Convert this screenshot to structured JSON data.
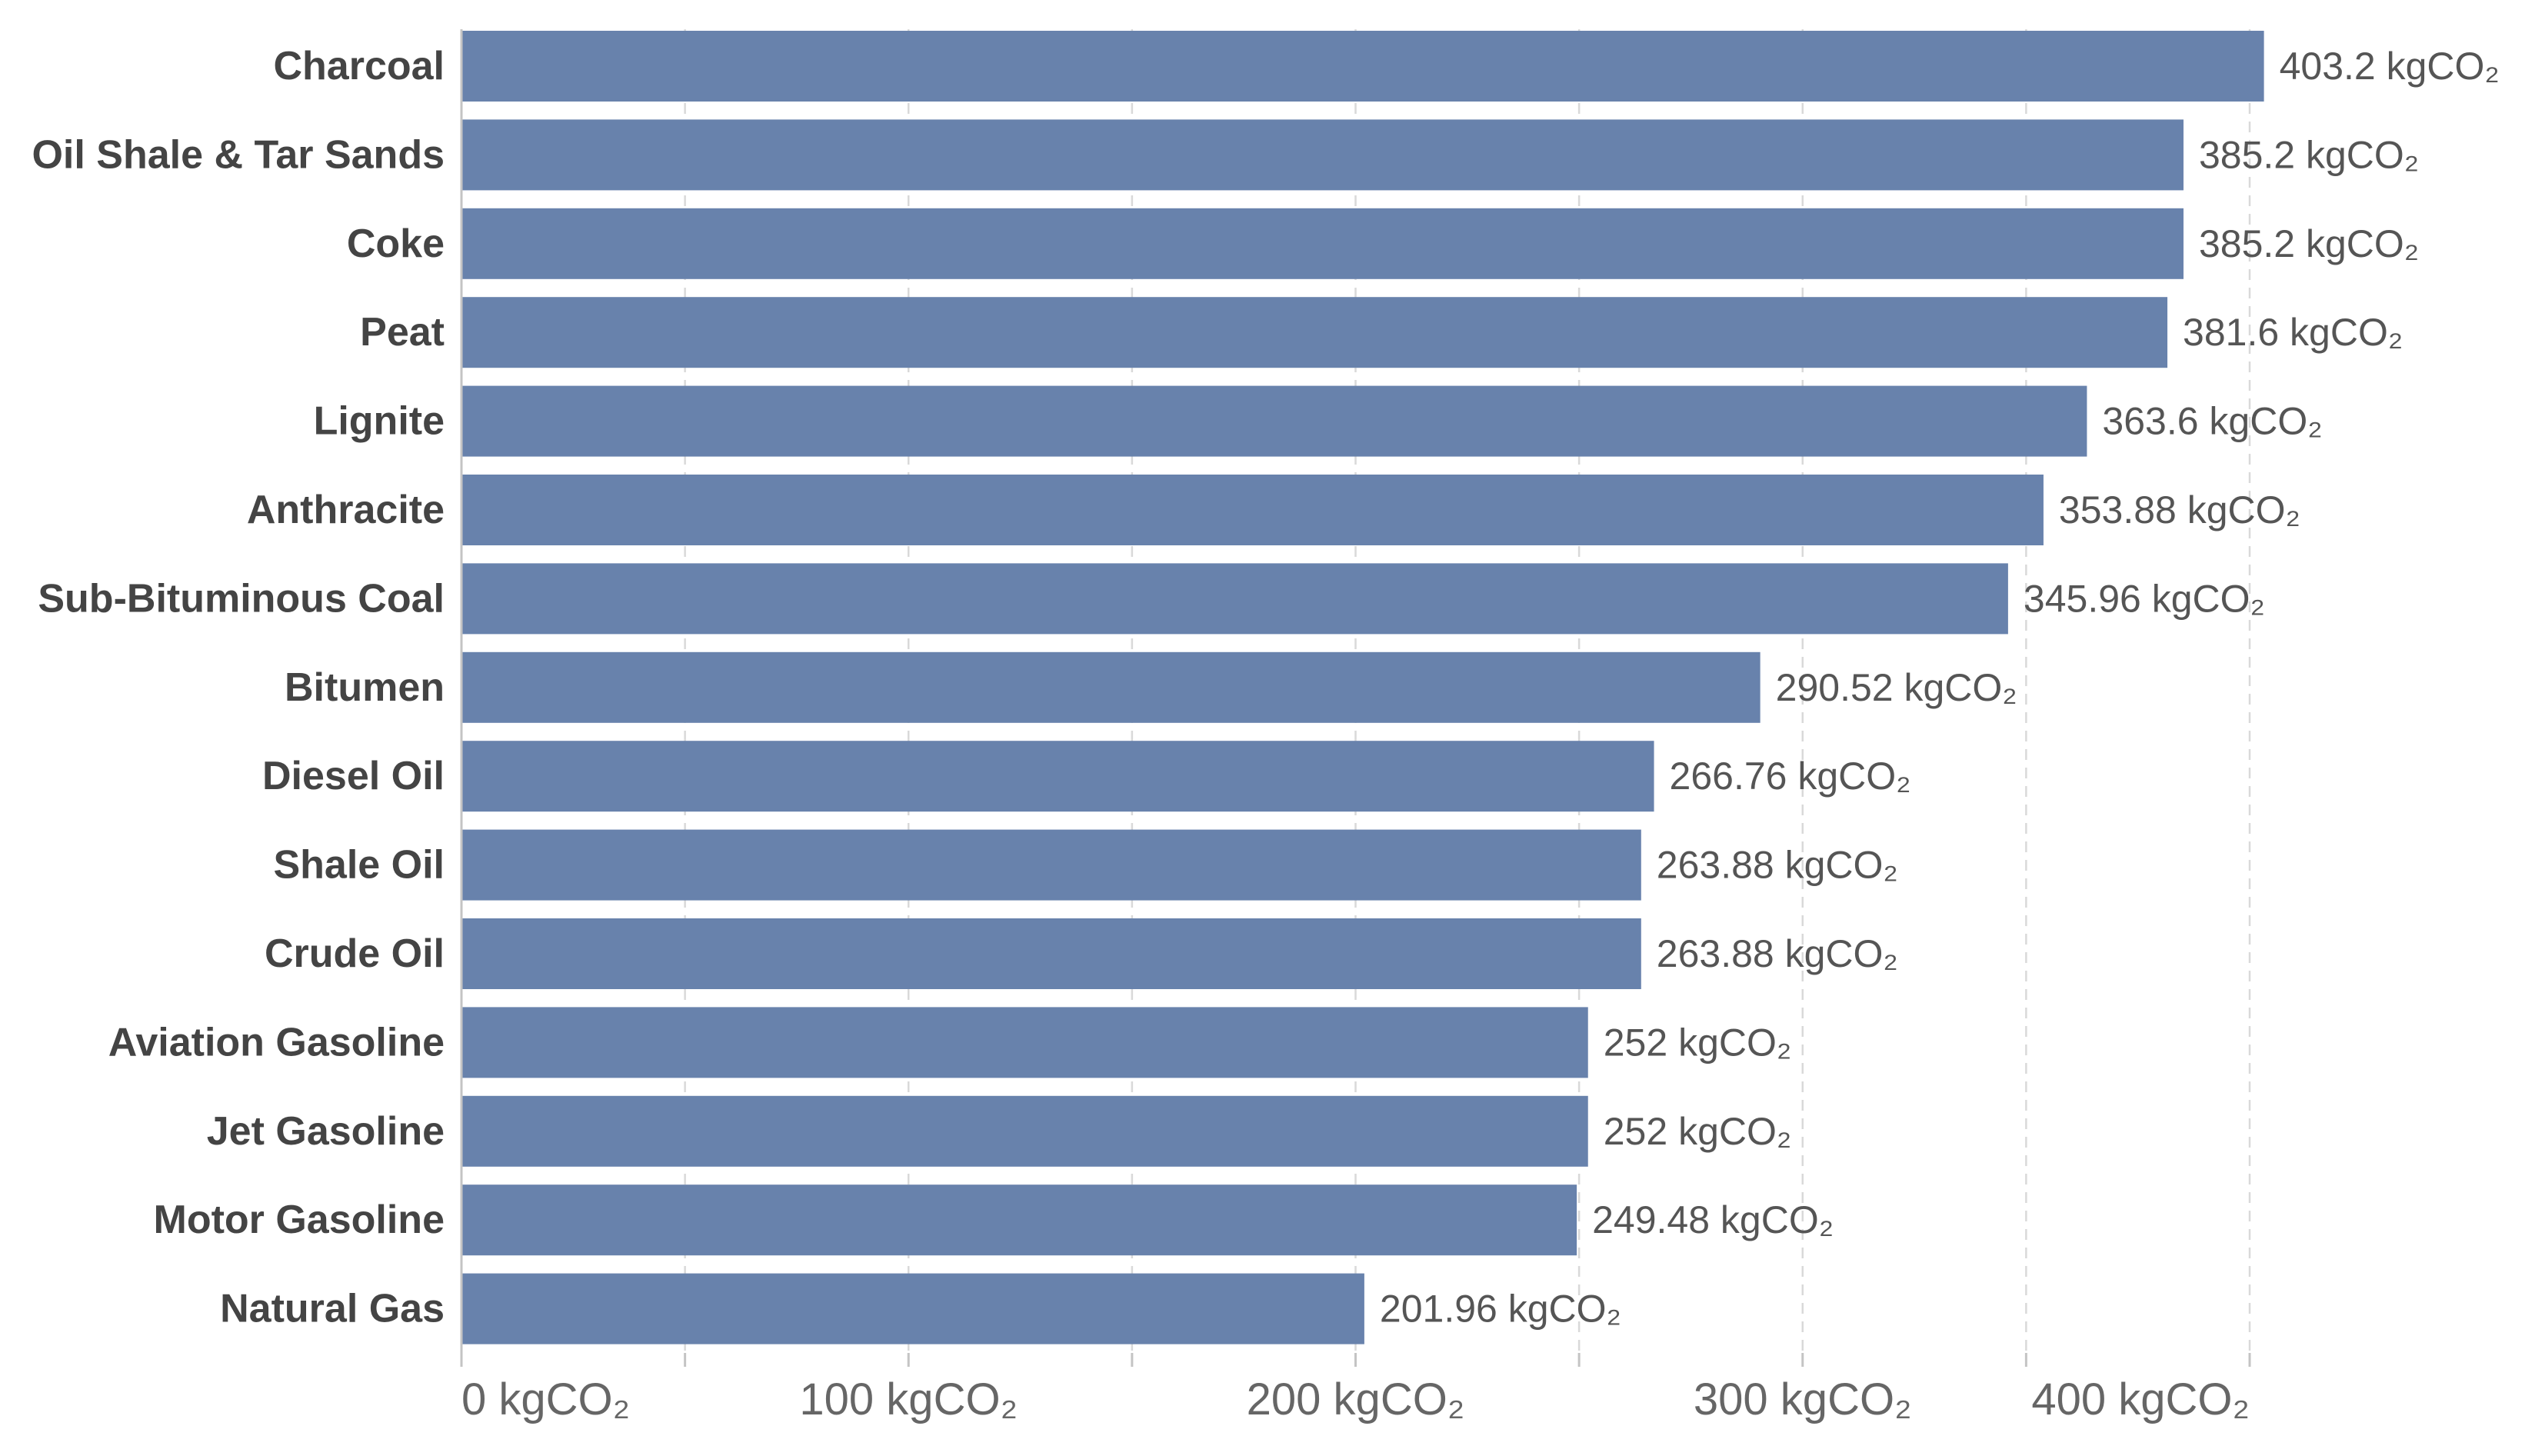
{
  "chart_data": {
    "type": "bar",
    "orientation": "horizontal",
    "unit": "kgCO₂",
    "categories": [
      "Charcoal",
      "Oil Shale & Tar Sands",
      "Coke",
      "Peat",
      "Lignite",
      "Anthracite",
      "Sub-Bituminous Coal",
      "Bitumen",
      "Diesel Oil",
      "Shale Oil",
      "Crude Oil",
      "Aviation Gasoline",
      "Jet Gasoline",
      "Motor Gasoline",
      "Natural Gas"
    ],
    "values": [
      403.2,
      385.2,
      385.2,
      381.6,
      363.6,
      353.88,
      345.96,
      290.52,
      266.76,
      263.88,
      263.88,
      252,
      252,
      249.48,
      201.96
    ],
    "value_labels": [
      "403.2 kgCO₂",
      "385.2 kgCO₂",
      "385.2 kgCO₂",
      "381.6 kgCO₂",
      "363.6 kgCO₂",
      "353.88 kgCO₂",
      "345.96 kgCO₂",
      "290.52 kgCO₂",
      "266.76 kgCO₂",
      "263.88 kgCO₂",
      "263.88 kgCO₂",
      "252 kgCO₂",
      "252 kgCO₂",
      "249.48 kgCO₂",
      "201.96 kgCO₂"
    ],
    "xlim": [
      0,
      400
    ],
    "x_ticks": [
      0,
      100,
      200,
      300,
      400
    ],
    "x_tick_labels": [
      "0 kgCO₂",
      "100 kgCO₂",
      "200 kgCO₂",
      "300 kgCO₂",
      "400 kgCO₂"
    ],
    "gridlines": [
      0,
      50,
      100,
      150,
      200,
      250,
      300,
      350,
      400
    ],
    "grid": true,
    "bar_color": "#6882ac",
    "title": "",
    "xlabel": "",
    "ylabel": ""
  }
}
